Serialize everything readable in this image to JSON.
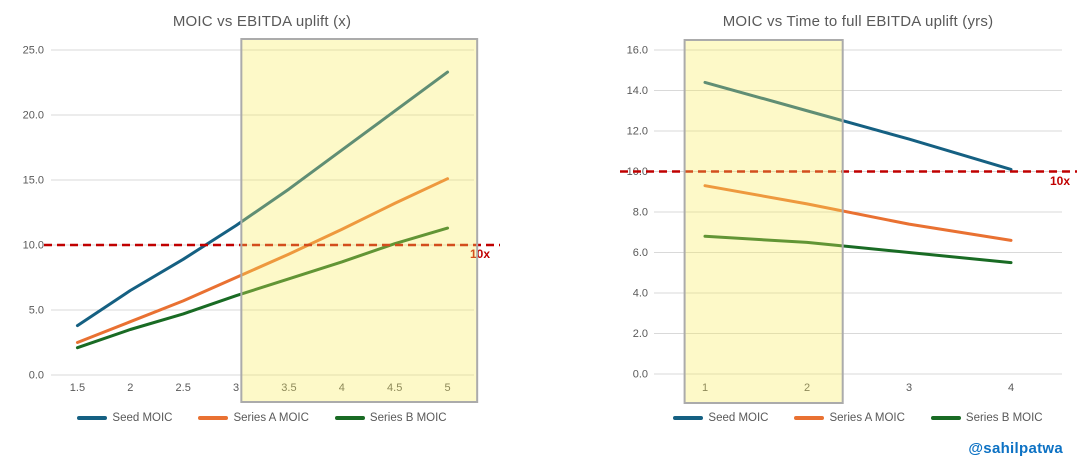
{
  "page": {
    "watermark": "@sahilpatwa"
  },
  "colors": {
    "seed": "#156082",
    "series_a": "#E97132",
    "series_b": "#196B24",
    "threshold": "#C00000",
    "grid": "#D9D9D9",
    "axis_text": "#595959",
    "title_text": "#595959",
    "highlight_fill": "rgba(248,236,87,0.33)",
    "highlight_border": "#ABABAB",
    "watermark": "#0D72C4",
    "background": "#FFFFFF"
  },
  "chart_data": [
    {
      "type": "line",
      "title": "MOIC vs EBITDA uplift (x)",
      "xlabel": "",
      "ylabel": "",
      "x_values": [
        1.5,
        2,
        2.5,
        3,
        3.5,
        4,
        4.5,
        5
      ],
      "x_tick_labels": [
        "1.5",
        "2",
        "2.5",
        "3",
        "3.5",
        "4",
        "4.5",
        "5"
      ],
      "y_tick_labels": [
        "0.0",
        "5.0",
        "10.0",
        "15.0",
        "20.0",
        "25.0"
      ],
      "ylim": [
        0,
        25
      ],
      "ytick_step": 5,
      "grid": true,
      "legend_position": "bottom",
      "series": [
        {
          "name": "Seed MOIC",
          "color_key": "seed",
          "values": [
            3.8,
            6.5,
            8.9,
            11.5,
            14.3,
            17.3,
            20.3,
            23.3
          ]
        },
        {
          "name": "Series A MOIC",
          "color_key": "series_a",
          "values": [
            2.5,
            4.1,
            5.7,
            7.5,
            9.3,
            11.2,
            13.2,
            15.1
          ]
        },
        {
          "name": "Series B MOIC",
          "color_key": "series_b",
          "values": [
            2.1,
            3.5,
            4.7,
            6.1,
            7.4,
            8.7,
            10.1,
            11.3
          ]
        }
      ],
      "threshold_line": {
        "value": 10,
        "label": "10x"
      },
      "highlight_region": {
        "x_start": 3.05,
        "x_end": 5.28
      }
    },
    {
      "type": "line",
      "title": "MOIC vs Time to full EBITDA uplift (yrs)",
      "xlabel": "",
      "ylabel": "",
      "x_values": [
        1,
        2,
        3,
        4
      ],
      "x_tick_labels": [
        "1",
        "2",
        "3",
        "4"
      ],
      "y_tick_labels": [
        "0.0",
        "2.0",
        "4.0",
        "6.0",
        "8.0",
        "10.0",
        "12.0",
        "14.0",
        "16.0"
      ],
      "ylim": [
        0,
        16
      ],
      "ytick_step": 2,
      "grid": true,
      "legend_position": "bottom",
      "series": [
        {
          "name": "Seed MOIC",
          "color_key": "seed",
          "values": [
            14.4,
            13.0,
            11.6,
            10.1
          ]
        },
        {
          "name": "Series A MOIC",
          "color_key": "series_a",
          "values": [
            9.3,
            8.4,
            7.4,
            6.6
          ]
        },
        {
          "name": "Series B MOIC",
          "color_key": "series_b",
          "values": [
            6.8,
            6.5,
            6.0,
            5.5
          ]
        }
      ],
      "threshold_line": {
        "value": 10,
        "label": "10x"
      },
      "highlight_region": {
        "x_start": 0.8,
        "x_end": 2.35
      }
    }
  ]
}
